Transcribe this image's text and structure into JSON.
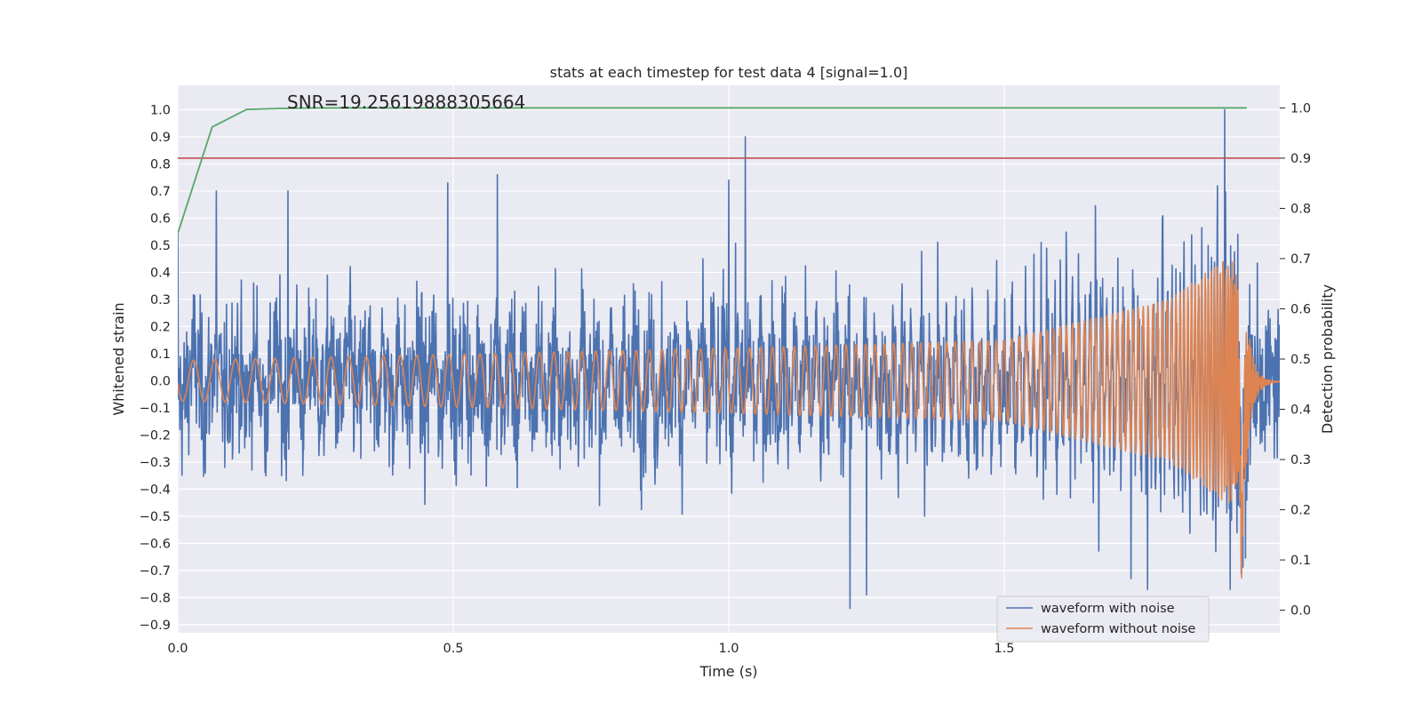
{
  "chart_data": {
    "type": "line",
    "title": "stats at each timestep for test data 4 [signal=1.0]",
    "annotation": "SNR=19.25619888305664",
    "xlabel": "Time (s)",
    "ylabel": "Whitened strain",
    "y2label": "Detection probability",
    "xlim": [
      0.0,
      2.0
    ],
    "ylim": [
      -0.93,
      1.09
    ],
    "y2lim": [
      -0.045,
      1.045
    ],
    "grid": true,
    "legend_position": "lower-right",
    "x_ticks": [
      "0.0",
      "0.5",
      "1.0",
      "1.5"
    ],
    "y_ticks": [
      "1.0",
      "0.9",
      "0.8",
      "0.7",
      "0.6",
      "0.5",
      "0.4",
      "0.3",
      "0.2",
      "0.1",
      "0.0",
      "−0.1",
      "−0.2",
      "−0.3",
      "−0.4",
      "−0.5",
      "−0.6",
      "−0.7",
      "−0.8",
      "−0.9"
    ],
    "y2_ticks": [
      "1.0",
      "0.9",
      "0.8",
      "0.7",
      "0.6",
      "0.5",
      "0.4",
      "0.3",
      "0.2",
      "0.1",
      "0.0"
    ],
    "threshold": {
      "axis": "right",
      "value": 0.9,
      "color": "#c44e52"
    },
    "series": [
      {
        "name": "waveform with noise",
        "axis": "left",
        "color": "#4c72b0",
        "noise_amplitude_typical": 0.2,
        "range": [
          -0.84,
          1.0
        ],
        "notable_peaks": [
          {
            "x": 0.0,
            "y": 0.55
          },
          {
            "x": 0.07,
            "y": 0.7
          },
          {
            "x": 0.2,
            "y": 0.7
          },
          {
            "x": 0.49,
            "y": 0.73
          },
          {
            "x": 0.58,
            "y": 0.76
          },
          {
            "x": 1.0,
            "y": 0.74
          },
          {
            "x": 1.03,
            "y": 0.9
          },
          {
            "x": 1.22,
            "y": -0.84
          },
          {
            "x": 1.25,
            "y": -0.79
          },
          {
            "x": 1.73,
            "y": -0.73
          },
          {
            "x": 1.76,
            "y": -0.77
          },
          {
            "x": 1.9,
            "y": 1.0
          },
          {
            "x": 1.91,
            "y": -0.77
          }
        ]
      },
      {
        "name": "waveform without noise",
        "axis": "left",
        "color": "#dd8452",
        "description_points": [
          {
            "x": 0.0,
            "amplitude": 0.075,
            "frequency_hz": 25
          },
          {
            "x": 1.0,
            "amplitude": 0.12,
            "frequency_hz": 45
          },
          {
            "x": 1.5,
            "amplitude": 0.15,
            "frequency_hz": 70
          },
          {
            "x": 1.8,
            "amplitude": 0.3,
            "frequency_hz": 120
          },
          {
            "x": 1.9,
            "amplitude": 0.45,
            "frequency_hz": 200
          }
        ],
        "merger_time": 1.935,
        "min_value": -0.65
      },
      {
        "name": "detection probability",
        "axis": "right",
        "color": "#55a868",
        "x": [
          0.0,
          0.0625,
          0.125,
          0.1875,
          0.25,
          0.5,
          1.0,
          1.5,
          1.94
        ],
        "values": [
          0.75,
          0.962,
          0.997,
          0.999,
          1.0,
          1.0,
          1.0,
          1.0,
          1.0
        ]
      }
    ]
  }
}
